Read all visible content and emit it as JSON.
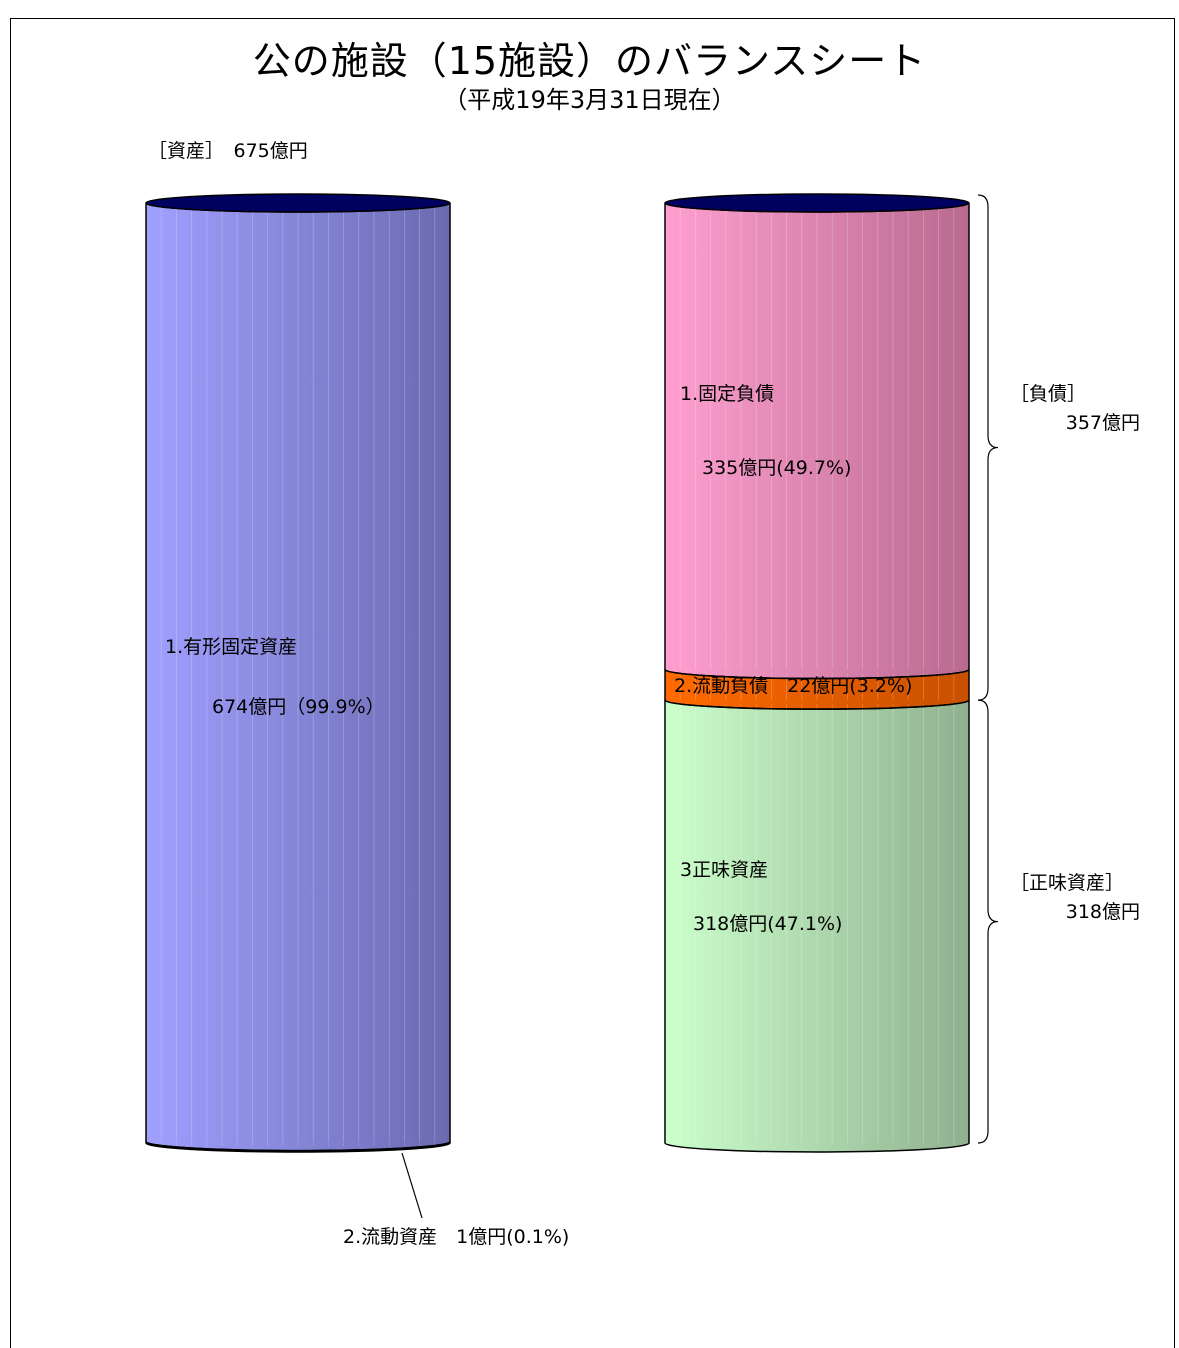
{
  "title": "公の施設（15施設）のバランスシート",
  "subtitle": "（平成19年3月31日現在）",
  "assets_total_label": "［資産］　675億円",
  "colors": {
    "fixed_assets": "#9b9bf5",
    "fixed_liabilities": "#f79bcb",
    "current_liabilities": "#ff6600",
    "net_assets": "#c9f7c9",
    "top_cap": "#000060"
  },
  "chart_data": {
    "type": "stacked-cylinder",
    "title": "公の施設（15施設）のバランスシート",
    "subtitle": "（平成19年3月31日現在）",
    "unit": "億円",
    "columns": [
      {
        "name": "資産",
        "total": 675,
        "total_label": "［資産］　675億円",
        "segments": [
          {
            "name": "1.有形固定資産",
            "value": 674,
            "percent": 99.9,
            "value_label": "674億円（99.9%）"
          },
          {
            "name": "2.流動資産",
            "value": 1,
            "percent": 0.1,
            "value_label": "2.流動資産　1億円(0.1%)"
          }
        ]
      },
      {
        "name": "負債・正味資産",
        "segments": [
          {
            "name": "1.固定負債",
            "value": 335,
            "percent": 49.7,
            "value_label": "335億円(49.7%)"
          },
          {
            "name": "2.流動負債",
            "value": 22,
            "percent": 3.2,
            "value_label": "2.流動負債　22億円(3.2%)"
          },
          {
            "name": "3正味資産",
            "value": 318,
            "percent": 47.1,
            "value_label": "318億円(47.1%)"
          }
        ],
        "groups": [
          {
            "label": "［負債］",
            "total_label": "357億円",
            "value": 357
          },
          {
            "label": "［正味資産］",
            "total_label": "318億円",
            "value": 318
          }
        ]
      }
    ]
  }
}
